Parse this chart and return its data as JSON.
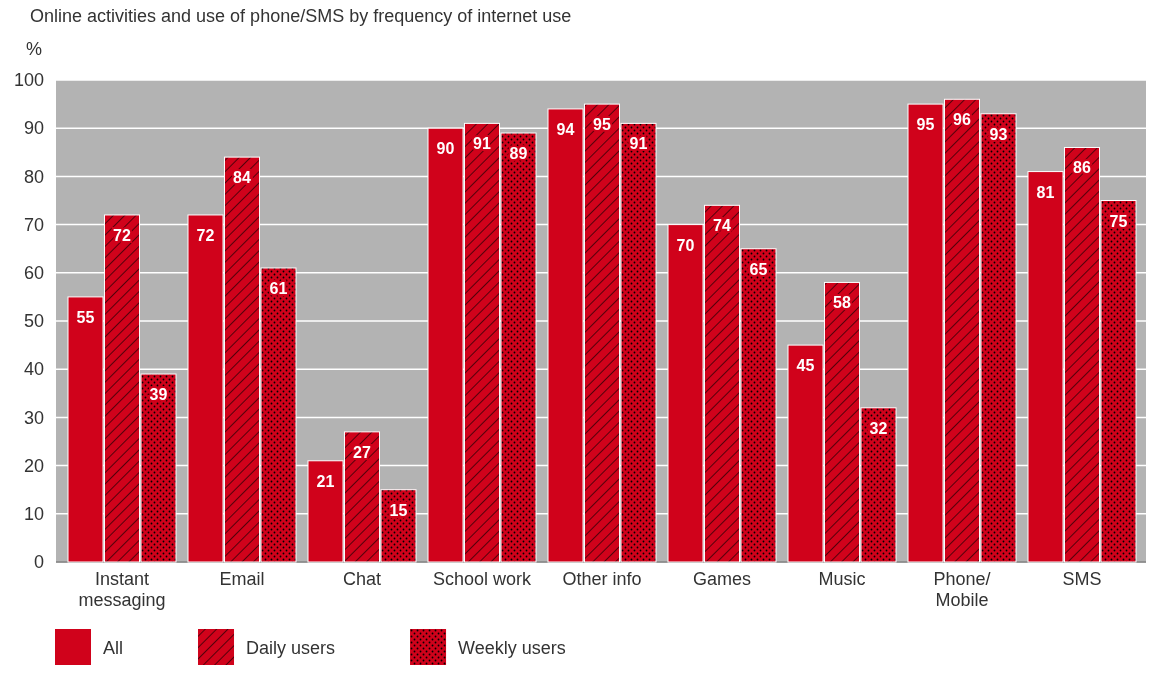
{
  "chart_data": {
    "type": "bar",
    "title": "Online activities and use of phone/SMS by frequency of internet use",
    "ylabel": "%",
    "categories": [
      "Instant messaging",
      "Email",
      "Chat",
      "School work",
      "Other info",
      "Games",
      "Music",
      "Phone/ Mobile",
      "SMS"
    ],
    "series": [
      {
        "name": "All",
        "color": "#d0021b",
        "values": [
          55,
          72,
          21,
          90,
          94,
          70,
          45,
          95,
          81
        ]
      },
      {
        "name": "Daily users",
        "color": "#d0021b",
        "values": [
          72,
          84,
          27,
          91,
          95,
          74,
          58,
          96,
          86
        ]
      },
      {
        "name": "Weekly users",
        "color": "#d0021b",
        "values": [
          39,
          61,
          15,
          89,
          91,
          65,
          32,
          93,
          75
        ]
      }
    ],
    "ylim": [
      0,
      100
    ],
    "yticks": [
      0,
      10,
      20,
      30,
      40,
      50,
      60,
      70,
      80,
      90,
      100
    ],
    "grid": "y",
    "legend": "bottom",
    "data_labels": true
  }
}
